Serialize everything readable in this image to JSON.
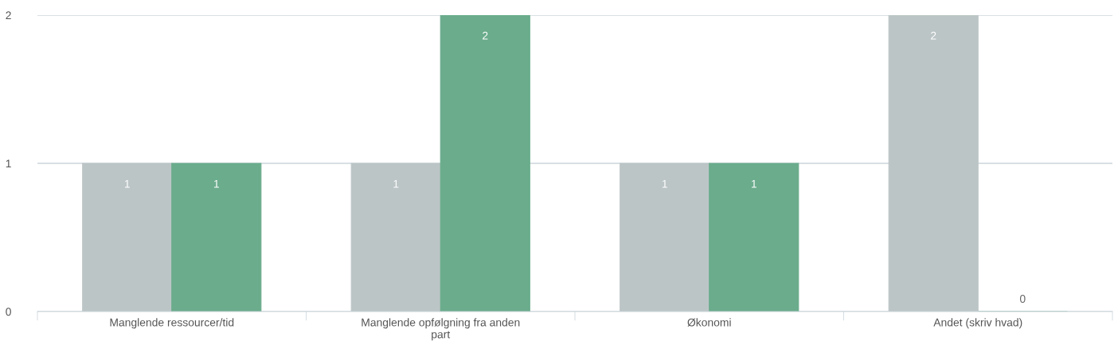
{
  "chart_data": {
    "type": "bar",
    "categories": [
      "Manglende ressourcer/tid",
      "Manglende opfølgning fra anden part",
      "Økonomi",
      "Andet (skriv hvad)"
    ],
    "series": [
      {
        "color": "#bcc5c6",
        "values": [
          1,
          1,
          1,
          2
        ]
      },
      {
        "color": "#6aac8c",
        "values": [
          1,
          2,
          1,
          0
        ]
      }
    ],
    "ylim": [
      0,
      2
    ],
    "yticks": [
      0,
      1,
      2
    ],
    "grid": "y",
    "data_labels": true,
    "legend": false
  }
}
